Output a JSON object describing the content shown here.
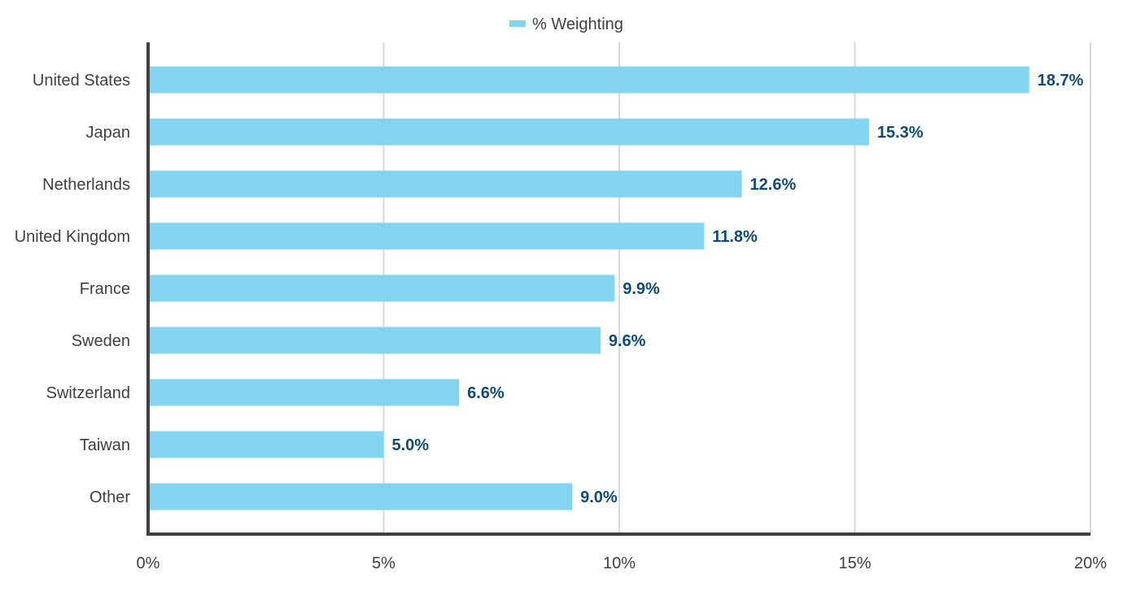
{
  "chart_data": {
    "type": "bar",
    "orientation": "horizontal",
    "categories": [
      "United States",
      "Japan",
      "Netherlands",
      "United Kingdom",
      "France",
      "Sweden",
      "Switzerland",
      "Taiwan",
      "Other"
    ],
    "series": [
      {
        "name": "% Weighting",
        "values": [
          18.7,
          15.3,
          12.6,
          11.8,
          9.9,
          9.6,
          6.6,
          5.0,
          9.0
        ],
        "labels": [
          "18.7%",
          "15.3%",
          "12.6%",
          "11.8%",
          "9.9%",
          "9.6%",
          "6.6%",
          "5.0%",
          "9.0%"
        ]
      }
    ],
    "xlim": [
      0,
      20
    ],
    "xticks": [
      0,
      5,
      10,
      15,
      20
    ],
    "xtick_labels": [
      "0%",
      "5%",
      "10%",
      "15%",
      "20%"
    ],
    "grid": "vertical",
    "legend_position": "top-center",
    "colors": {
      "bar": "#82d4f0",
      "value_label": "#0e4a7a",
      "axis": "#404040",
      "grid": "#d9d9d9",
      "text": "#404040"
    }
  }
}
